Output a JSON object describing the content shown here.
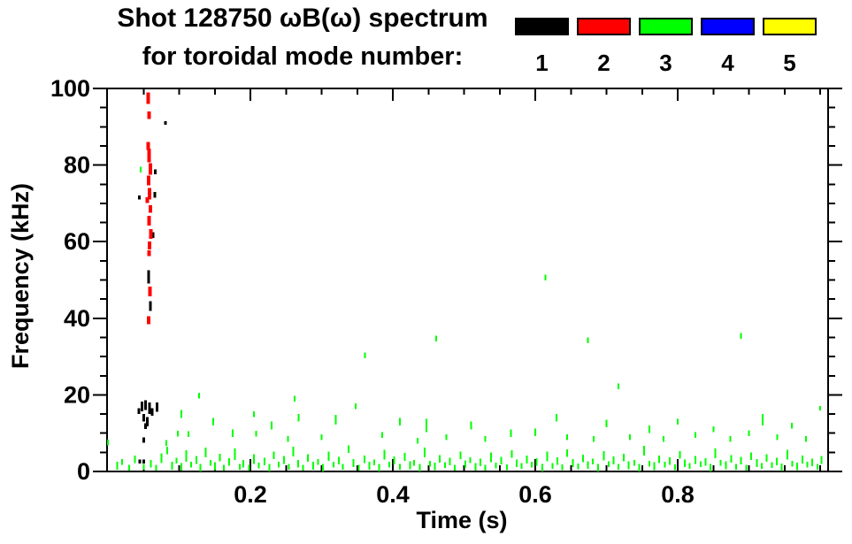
{
  "title": {
    "line1": "Shot 128750 ωB(ω) spectrum",
    "line2": "for toroidal mode number:"
  },
  "legend": {
    "items": [
      {
        "label": "1",
        "color": "#000000"
      },
      {
        "label": "2",
        "color": "#ff0000"
      },
      {
        "label": "3",
        "color": "#00ff00"
      },
      {
        "label": "4",
        "color": "#0000ff"
      },
      {
        "label": "5",
        "color": "#ffff00"
      }
    ]
  },
  "chart_data": {
    "type": "scatter",
    "subtype": "spectrogram-points",
    "title": "Shot 128750 ωB(ω) spectrum for toroidal mode number: 1 2 3 4 5",
    "xlabel": "Time (s)",
    "ylabel": "Frequency (kHz)",
    "xlim": [
      0,
      1.01
    ],
    "ylim": [
      0,
      100
    ],
    "grid": false,
    "legend_position": "top-right",
    "x_major_ticks": [
      0.2,
      0.4,
      0.6,
      0.8
    ],
    "x_tick_labels": [
      "0.2",
      "0.4",
      "0.6",
      "0.8"
    ],
    "x_minor_ticks": [
      0.05,
      0.1,
      0.15,
      0.25,
      0.3,
      0.35,
      0.45,
      0.5,
      0.55,
      0.65,
      0.7,
      0.75,
      0.85,
      0.9,
      0.95,
      1.0
    ],
    "y_major_ticks": [
      0,
      20,
      40,
      60,
      80,
      100
    ],
    "y_tick_labels": [
      "0",
      "20",
      "40",
      "60",
      "80",
      "100"
    ],
    "y_minor_ticks": [
      5,
      10,
      15,
      25,
      30,
      35,
      45,
      50,
      55,
      65,
      70,
      75,
      85,
      90,
      95
    ],
    "series": [
      {
        "name": "1",
        "mode_number": 1,
        "color": "#000000",
        "dot_width": 3,
        "points": [
          [
            0.048,
            17,
            2.5
          ],
          [
            0.053,
            17.3,
            2.5
          ],
          [
            0.0585,
            16.5,
            3
          ],
          [
            0.0435,
            15.8,
            1.5
          ],
          [
            0.05,
            14,
            2
          ],
          [
            0.0555,
            13,
            2.5
          ],
          [
            0.0525,
            11.8,
            1.5
          ],
          [
            0.062,
            15.5,
            2
          ],
          [
            0.0688,
            16.8,
            2.5
          ],
          [
            0.05,
            8.2,
            1.3
          ],
          [
            0.0445,
            2.6,
            1
          ],
          [
            0.0505,
            2.6,
            1
          ],
          [
            0.0572,
            50.8,
            3.5
          ],
          [
            0.0598,
            43.2,
            2.5
          ],
          [
            0.0632,
            61.7,
            1.5
          ],
          [
            0.0658,
            72.2,
            1.5
          ],
          [
            0.0438,
            71.5,
            1
          ],
          [
            0.0662,
            78.2,
            1.3
          ],
          [
            0.0805,
            91,
            1
          ]
        ]
      },
      {
        "name": "2",
        "mode_number": 2,
        "color": "#ff0000",
        "dot_width": 4,
        "points": [
          [
            0.0565,
            97.5,
            3
          ],
          [
            0.058,
            93,
            2
          ],
          [
            0.0565,
            85,
            2
          ],
          [
            0.0578,
            82.5,
            3.5
          ],
          [
            0.0595,
            79,
            3
          ],
          [
            0.057,
            76,
            2.5
          ],
          [
            0.0582,
            72.5,
            3
          ],
          [
            0.0553,
            70.8,
            1.5
          ],
          [
            0.0595,
            68.5,
            2
          ],
          [
            0.0578,
            65.5,
            2.5
          ],
          [
            0.0602,
            62,
            2.5
          ],
          [
            0.0585,
            59,
            2
          ],
          [
            0.0578,
            57,
            1.5
          ],
          [
            0.059,
            47,
            2.5
          ],
          [
            0.0572,
            39.5,
            2
          ]
        ]
      },
      {
        "name": "3",
        "mode_number": 3,
        "color": "#00ff00",
        "dot_width": 2,
        "points": [
          [
            0.046,
            78.8,
            1.5
          ],
          [
            0.614,
            50.6,
            1.5
          ],
          [
            0.461,
            34.7,
            1.5
          ],
          [
            0.674,
            34.2,
            1.5
          ],
          [
            0.889,
            35.4,
            1.5
          ],
          [
            0.361,
            30.3,
            1.5
          ],
          [
            0.717,
            22.2,
            1.5
          ],
          [
            0.128,
            19.8,
            1.5
          ],
          [
            0.262,
            19,
            1.5
          ],
          [
            0.348,
            17,
            1.5
          ],
          [
            1.0,
            16.5,
            1.2
          ],
          [
            0.103,
            15,
            2
          ],
          [
            0.205,
            15,
            1.5
          ],
          [
            0.919,
            13.5,
            3
          ],
          [
            0.148,
            13,
            2
          ],
          [
            0.23,
            12,
            2
          ],
          [
            0.268,
            14,
            2
          ],
          [
            0.32,
            13.5,
            2.5
          ],
          [
            0.41,
            13,
            2
          ],
          [
            0.447,
            12,
            3.5
          ],
          [
            0.51,
            12,
            2
          ],
          [
            0.63,
            14,
            2
          ],
          [
            0.7,
            12.5,
            2
          ],
          [
            0.76,
            11,
            2
          ],
          [
            0.8,
            13,
            1.5
          ],
          [
            0.85,
            11,
            1.5
          ],
          [
            0.96,
            12,
            1.5
          ],
          [
            0.0,
            7.6,
            1.5
          ],
          [
            0.082,
            7.4,
            1.5
          ],
          [
            0.098,
            9.9,
            1.5
          ],
          [
            0.113,
            9.8,
            1.5
          ],
          [
            0.175,
            10,
            2
          ],
          [
            0.208,
            9.9,
            1.5
          ],
          [
            0.253,
            8.5,
            1.5
          ],
          [
            0.3,
            9,
            1.5
          ],
          [
            0.385,
            9.5,
            1.5
          ],
          [
            0.435,
            8,
            1.5
          ],
          [
            0.475,
            9,
            1.5
          ],
          [
            0.53,
            8.5,
            1.5
          ],
          [
            0.566,
            10,
            2
          ],
          [
            0.6,
            10.2,
            2
          ],
          [
            0.645,
            9,
            1.5
          ],
          [
            0.682,
            8.5,
            1.5
          ],
          [
            0.733,
            9,
            1.5
          ],
          [
            0.78,
            8.5,
            1.5
          ],
          [
            0.825,
            9.5,
            1.5
          ],
          [
            0.874,
            8.5,
            1.5
          ],
          [
            0.9,
            10,
            1.5
          ],
          [
            0.94,
            9,
            1.5
          ],
          [
            0.98,
            8.5,
            1.5
          ],
          [
            0.013,
            1.5,
            2
          ],
          [
            0.02,
            2.5,
            1.5
          ],
          [
            0.03,
            1.0,
            1.5
          ],
          [
            0.038,
            3.2,
            2
          ],
          [
            0.05,
            1.2,
            1.5
          ],
          [
            0.06,
            2.0,
            2
          ],
          [
            0.068,
            1.0,
            1.5
          ],
          [
            0.075,
            3.5,
            2.5
          ],
          [
            0.083,
            5.5,
            2
          ],
          [
            0.09,
            1.5,
            2
          ],
          [
            0.096,
            2.8,
            1.5
          ],
          [
            0.103,
            1.2,
            2
          ],
          [
            0.11,
            4.0,
            3
          ],
          [
            0.117,
            1.8,
            1.5
          ],
          [
            0.124,
            3.0,
            2
          ],
          [
            0.13,
            1.0,
            2
          ],
          [
            0.137,
            5.0,
            2.5
          ],
          [
            0.144,
            2.2,
            1.5
          ],
          [
            0.15,
            1.4,
            2
          ],
          [
            0.157,
            3.6,
            2
          ],
          [
            0.163,
            1.0,
            1.5
          ],
          [
            0.17,
            2.5,
            2
          ],
          [
            0.178,
            4.5,
            3
          ],
          [
            0.185,
            1.2,
            1.5
          ],
          [
            0.19,
            2.0,
            2
          ],
          [
            0.198,
            1.0,
            1.5
          ],
          [
            0.205,
            3.2,
            2.5
          ],
          [
            0.212,
            1.6,
            1.5
          ],
          [
            0.22,
            2.6,
            2
          ],
          [
            0.227,
            1.0,
            2
          ],
          [
            0.233,
            4.2,
            2
          ],
          [
            0.24,
            1.8,
            1.5
          ],
          [
            0.247,
            3.0,
            2
          ],
          [
            0.254,
            1.2,
            1.5
          ],
          [
            0.26,
            5.2,
            2.5
          ],
          [
            0.267,
            2.0,
            2
          ],
          [
            0.274,
            1.0,
            1.5
          ],
          [
            0.281,
            3.5,
            2
          ],
          [
            0.288,
            1.5,
            2
          ],
          [
            0.295,
            2.5,
            1.5
          ],
          [
            0.302,
            1.0,
            2
          ],
          [
            0.31,
            4.0,
            2.5
          ],
          [
            0.317,
            1.8,
            1.5
          ],
          [
            0.324,
            2.8,
            2
          ],
          [
            0.33,
            1.2,
            1.5
          ],
          [
            0.338,
            5.8,
            2
          ],
          [
            0.345,
            2.2,
            2
          ],
          [
            0.352,
            1.0,
            1.5
          ],
          [
            0.36,
            3.2,
            2
          ],
          [
            0.367,
            1.5,
            2
          ],
          [
            0.374,
            2.4,
            1.5
          ],
          [
            0.381,
            1.0,
            2
          ],
          [
            0.388,
            4.4,
            2.5
          ],
          [
            0.395,
            1.8,
            1.5
          ],
          [
            0.402,
            2.9,
            2
          ],
          [
            0.41,
            1.2,
            1.5
          ],
          [
            0.417,
            3.8,
            2
          ],
          [
            0.424,
            1.6,
            2
          ],
          [
            0.43,
            2.3,
            1.5
          ],
          [
            0.438,
            1.0,
            2
          ],
          [
            0.445,
            5.0,
            2.5
          ],
          [
            0.452,
            2.0,
            1.5
          ],
          [
            0.459,
            1.3,
            2
          ],
          [
            0.466,
            3.3,
            2
          ],
          [
            0.473,
            1.7,
            1.5
          ],
          [
            0.48,
            2.6,
            2
          ],
          [
            0.487,
            1.0,
            1.5
          ],
          [
            0.495,
            4.2,
            2
          ],
          [
            0.502,
            1.9,
            2
          ],
          [
            0.509,
            3.0,
            1.5
          ],
          [
            0.516,
            1.2,
            2
          ],
          [
            0.523,
            2.4,
            2
          ],
          [
            0.53,
            1.0,
            1.5
          ],
          [
            0.538,
            3.7,
            2.5
          ],
          [
            0.545,
            1.6,
            1.5
          ],
          [
            0.552,
            2.8,
            2
          ],
          [
            0.56,
            1.1,
            1.5
          ],
          [
            0.567,
            4.6,
            2
          ],
          [
            0.574,
            2.1,
            2
          ],
          [
            0.581,
            1.4,
            1.5
          ],
          [
            0.588,
            3.1,
            2
          ],
          [
            0.595,
            1.8,
            1.5
          ],
          [
            0.602,
            2.5,
            2
          ],
          [
            0.61,
            1.0,
            2
          ],
          [
            0.617,
            3.9,
            2.5
          ],
          [
            0.624,
            1.5,
            1.5
          ],
          [
            0.631,
            2.7,
            2
          ],
          [
            0.638,
            1.1,
            1.5
          ],
          [
            0.645,
            4.8,
            2
          ],
          [
            0.653,
            2.2,
            2
          ],
          [
            0.66,
            1.3,
            1.5
          ],
          [
            0.667,
            3.4,
            2
          ],
          [
            0.674,
            1.7,
            2
          ],
          [
            0.681,
            2.6,
            1.5
          ],
          [
            0.688,
            1.0,
            2
          ],
          [
            0.696,
            4.1,
            2.5
          ],
          [
            0.703,
            1.9,
            1.5
          ],
          [
            0.71,
            2.9,
            2
          ],
          [
            0.717,
            1.2,
            1.5
          ],
          [
            0.724,
            3.6,
            2
          ],
          [
            0.731,
            1.6,
            2
          ],
          [
            0.739,
            2.3,
            1.5
          ],
          [
            0.746,
            1.0,
            2
          ],
          [
            0.753,
            5.4,
            2.5
          ],
          [
            0.76,
            2.0,
            1.5
          ],
          [
            0.767,
            1.4,
            2
          ],
          [
            0.774,
            3.2,
            2
          ],
          [
            0.782,
            1.8,
            1.5
          ],
          [
            0.789,
            2.7,
            2
          ],
          [
            0.796,
            1.1,
            1.5
          ],
          [
            0.803,
            4.3,
            2
          ],
          [
            0.81,
            2.1,
            2
          ],
          [
            0.817,
            1.5,
            1.5
          ],
          [
            0.825,
            3.0,
            2
          ],
          [
            0.832,
            1.9,
            1.5
          ],
          [
            0.839,
            2.5,
            2
          ],
          [
            0.846,
            1.0,
            2
          ],
          [
            0.853,
            4.7,
            2.5
          ],
          [
            0.86,
            2.3,
            1.5
          ],
          [
            0.868,
            1.6,
            2
          ],
          [
            0.875,
            3.3,
            2
          ],
          [
            0.882,
            1.2,
            1.5
          ],
          [
            0.889,
            2.8,
            2
          ],
          [
            0.896,
            1.0,
            1.5
          ],
          [
            0.903,
            4.0,
            2
          ],
          [
            0.911,
            2.2,
            2
          ],
          [
            0.918,
            1.4,
            1.5
          ],
          [
            0.925,
            3.5,
            2
          ],
          [
            0.932,
            1.7,
            1.5
          ],
          [
            0.939,
            2.6,
            2
          ],
          [
            0.946,
            1.1,
            2
          ],
          [
            0.954,
            4.4,
            2.5
          ],
          [
            0.961,
            2.0,
            1.5
          ],
          [
            0.968,
            1.3,
            2
          ],
          [
            0.975,
            3.1,
            2
          ],
          [
            0.982,
            1.8,
            1.5
          ],
          [
            0.989,
            2.4,
            2
          ],
          [
            0.996,
            1.2,
            1.5
          ],
          [
            1.002,
            3.0,
            2
          ]
        ]
      },
      {
        "name": "4",
        "mode_number": 4,
        "color": "#0000ff",
        "dot_width": 2,
        "points": []
      },
      {
        "name": "5",
        "mode_number": 5,
        "color": "#ffff00",
        "dot_width": 2,
        "points": []
      }
    ]
  }
}
